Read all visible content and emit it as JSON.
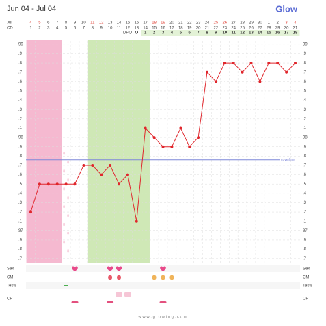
{
  "header": {
    "title": "Jun 04 - Jul 04",
    "logo": "Glow"
  },
  "footer": "w w w . g l o w i n g . c o m",
  "chart_data": {
    "type": "line",
    "month_label": "Jul",
    "cd_label": "CD",
    "dpo_label": "DPO",
    "dates": [
      4,
      5,
      6,
      7,
      8,
      9,
      10,
      11,
      12,
      13,
      14,
      15,
      16,
      17,
      18,
      19,
      20,
      21,
      22,
      23,
      24,
      25,
      26,
      27,
      28,
      29,
      30,
      1,
      2,
      3,
      4
    ],
    "highlighted_dates": [
      0,
      1,
      7,
      8,
      14,
      15,
      21,
      22,
      29,
      30
    ],
    "highlight_color": "#e0453a",
    "categories": [
      1,
      2,
      3,
      4,
      5,
      6,
      7,
      8,
      9,
      10,
      11,
      12,
      13,
      14,
      15,
      16,
      17,
      18,
      19,
      20,
      21,
      22,
      23,
      24,
      25,
      26,
      27,
      28,
      29,
      30,
      31
    ],
    "dpo": [
      null,
      null,
      null,
      null,
      null,
      null,
      null,
      null,
      null,
      null,
      null,
      null,
      "O",
      1,
      2,
      3,
      4,
      5,
      6,
      7,
      8,
      9,
      10,
      11,
      12,
      13,
      14,
      15,
      16,
      17,
      18
    ],
    "values": [
      97.2,
      97.5,
      97.5,
      97.5,
      97.5,
      97.5,
      97.7,
      97.7,
      97.6,
      97.7,
      97.5,
      97.6,
      97.1,
      98.1,
      98.0,
      97.9,
      97.9,
      98.1,
      97.9,
      98.0,
      98.7,
      98.6,
      98.8,
      98.8,
      98.7,
      98.8,
      98.6,
      98.8,
      98.8,
      98.7,
      98.8
    ],
    "color": "#e0262c",
    "ylim": [
      96.65,
      99.05
    ],
    "yticks": [
      99,
      {
        "value": 98.9,
        "label": ".9"
      },
      {
        "value": 98.8,
        "label": ".8"
      },
      {
        "value": 98.7,
        "label": ".7"
      },
      {
        "value": 98.6,
        "label": ".6"
      },
      {
        "value": 98.5,
        "label": ".5"
      },
      {
        "value": 98.4,
        "label": ".4"
      },
      {
        "value": 98.3,
        "label": ".3"
      },
      {
        "value": 98.2,
        "label": ".2"
      },
      {
        "value": 98.1,
        "label": ".1"
      },
      98,
      {
        "value": 97.9,
        "label": ".9"
      },
      {
        "value": 97.8,
        "label": ".8"
      },
      {
        "value": 97.7,
        "label": ".7"
      },
      {
        "value": 97.6,
        "label": ".6"
      },
      {
        "value": 97.5,
        "label": ".5"
      },
      {
        "value": 97.4,
        "label": ".4"
      },
      {
        "value": 97.3,
        "label": ".3"
      },
      {
        "value": 97.2,
        "label": ".2"
      },
      {
        "value": 97.1,
        "label": ".1"
      },
      97,
      {
        "value": 96.9,
        "label": ".9"
      },
      {
        "value": 96.8,
        "label": ".8"
      },
      {
        "value": 96.7,
        "label": ".7"
      }
    ],
    "grid": true,
    "coverline": {
      "value": 97.76,
      "label": "coverline",
      "color": "#7f88d8"
    },
    "period": {
      "from": 1,
      "to": 4,
      "color": "#f5b9d0"
    },
    "fertile": {
      "from": 8,
      "to": 14,
      "color": "#cfe8b6"
    },
    "rows": [
      {
        "label": "Sex",
        "days": [
          6,
          10,
          11,
          16
        ]
      },
      {
        "label": "CM",
        "days": [
          10,
          11,
          15,
          16,
          17
        ]
      },
      {
        "label": "Tests",
        "days": [
          5
        ]
      },
      {
        "label": "CP",
        "days": [
          6,
          10,
          11,
          12,
          16
        ]
      }
    ]
  }
}
